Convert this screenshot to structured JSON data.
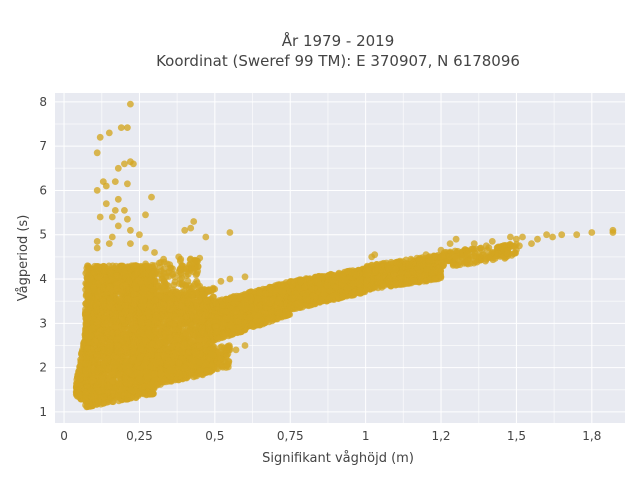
{
  "chart_data": {
    "type": "scatter",
    "title_line1": "År 1979 - 2019",
    "title_line2": "Koordinat (Sweref 99 TM): E 370907, N 6178096",
    "xlabel": "Signifikant våghöjd (m)",
    "ylabel": "Vågperiod (s)",
    "xlim": [
      -0.03,
      1.86
    ],
    "ylim": [
      0.75,
      8.2
    ],
    "x_ticks": [
      {
        "value": 0,
        "label": "0"
      },
      {
        "value": 0.25,
        "label": "0,25"
      },
      {
        "value": 0.5,
        "label": "0,5"
      },
      {
        "value": 0.75,
        "label": "0,75"
      },
      {
        "value": 1,
        "label": "1"
      },
      {
        "value": 1.25,
        "label": "1,2"
      },
      {
        "value": 1.5,
        "label": "1,5"
      },
      {
        "value": 1.75,
        "label": "1,8"
      }
    ],
    "y_ticks": [
      {
        "value": 1,
        "label": "1"
      },
      {
        "value": 2,
        "label": "2"
      },
      {
        "value": 3,
        "label": "3"
      },
      {
        "value": 4,
        "label": "4"
      },
      {
        "value": 5,
        "label": "5"
      },
      {
        "value": 6,
        "label": "6"
      },
      {
        "value": 7,
        "label": "7"
      },
      {
        "value": 8,
        "label": "8"
      }
    ],
    "marker_color": "#D4A520",
    "plot_background": "#E8EAF1",
    "grid": true,
    "points": [
      [
        0.22,
        7.95
      ],
      [
        0.19,
        7.42
      ],
      [
        0.21,
        7.42
      ],
      [
        0.15,
        7.3
      ],
      [
        0.12,
        7.2
      ],
      [
        0.11,
        6.85
      ],
      [
        0.22,
        6.65
      ],
      [
        0.2,
        6.6
      ],
      [
        0.23,
        6.6
      ],
      [
        0.18,
        6.5
      ],
      [
        0.17,
        6.2
      ],
      [
        0.13,
        6.2
      ],
      [
        0.21,
        6.15
      ],
      [
        0.14,
        6.1
      ],
      [
        0.11,
        6.0
      ],
      [
        0.29,
        5.85
      ],
      [
        0.18,
        5.8
      ],
      [
        0.14,
        5.7
      ],
      [
        0.17,
        5.55
      ],
      [
        0.2,
        5.55
      ],
      [
        0.27,
        5.45
      ],
      [
        0.16,
        5.4
      ],
      [
        0.12,
        5.4
      ],
      [
        0.21,
        5.35
      ],
      [
        0.18,
        5.2
      ],
      [
        0.22,
        5.1
      ],
      [
        0.25,
        5.0
      ],
      [
        0.16,
        4.95
      ],
      [
        0.15,
        4.8
      ],
      [
        0.11,
        4.85
      ],
      [
        0.22,
        4.8
      ],
      [
        0.11,
        4.7
      ],
      [
        0.27,
        4.7
      ],
      [
        0.3,
        4.6
      ],
      [
        0.43,
        5.3
      ],
      [
        0.42,
        5.15
      ],
      [
        0.4,
        5.1
      ],
      [
        0.55,
        5.05
      ],
      [
        0.47,
        4.95
      ],
      [
        0.38,
        4.5
      ],
      [
        0.33,
        4.45
      ],
      [
        0.43,
        4.4
      ],
      [
        1.82,
        5.1
      ],
      [
        1.82,
        5.05
      ],
      [
        1.75,
        5.05
      ],
      [
        1.7,
        5.0
      ],
      [
        1.65,
        5.0
      ],
      [
        1.6,
        5.0
      ],
      [
        1.57,
        4.9
      ],
      [
        1.52,
        4.95
      ],
      [
        1.5,
        4.9
      ],
      [
        1.48,
        4.95
      ],
      [
        1.42,
        4.85
      ],
      [
        1.36,
        4.8
      ],
      [
        1.62,
        4.95
      ],
      [
        1.55,
        4.8
      ],
      [
        1.51,
        4.75
      ],
      [
        1.46,
        4.7
      ],
      [
        1.4,
        4.75
      ],
      [
        1.3,
        4.9
      ],
      [
        1.28,
        4.8
      ],
      [
        1.25,
        4.65
      ],
      [
        1.2,
        4.55
      ],
      [
        1.15,
        4.45
      ],
      [
        1.03,
        4.55
      ],
      [
        1.02,
        4.5
      ],
      [
        0.6,
        2.5
      ],
      [
        0.57,
        2.4
      ],
      [
        0.52,
        2.2
      ],
      [
        0.47,
        2.1
      ],
      [
        0.43,
        2.15
      ],
      [
        0.38,
        2.1
      ],
      [
        0.35,
        1.95
      ],
      [
        0.3,
        1.85
      ],
      [
        0.25,
        1.75
      ],
      [
        0.55,
        4.0
      ],
      [
        0.6,
        4.05
      ],
      [
        0.52,
        3.95
      ]
    ],
    "bands": [
      {
        "x0": 0.04,
        "x1": 0.09,
        "ylo0": 1.35,
        "yhi0": 1.65,
        "ylo1": 1.15,
        "yhi1": 3.6,
        "n": 220
      },
      {
        "x0": 0.07,
        "x1": 0.3,
        "ylo0": 1.1,
        "yhi0": 4.3,
        "ylo1": 1.4,
        "yhi1": 4.3,
        "n": 2600
      },
      {
        "x0": 0.25,
        "x1": 0.5,
        "ylo0": 1.5,
        "yhi0": 3.6,
        "ylo1": 1.9,
        "yhi1": 3.8,
        "n": 1500
      },
      {
        "x0": 0.5,
        "x1": 0.75,
        "ylo0": 2.6,
        "yhi0": 3.5,
        "ylo1": 3.2,
        "yhi1": 3.95,
        "n": 1100
      },
      {
        "x0": 0.75,
        "x1": 1.0,
        "ylo0": 3.3,
        "yhi0": 3.95,
        "ylo1": 3.7,
        "yhi1": 4.25,
        "n": 900
      },
      {
        "x0": 1.0,
        "x1": 1.25,
        "ylo0": 3.75,
        "yhi0": 4.3,
        "ylo1": 4.0,
        "yhi1": 4.55,
        "n": 600
      },
      {
        "x0": 1.25,
        "x1": 1.5,
        "ylo0": 4.25,
        "yhi0": 4.6,
        "ylo1": 4.5,
        "yhi1": 4.8,
        "n": 180
      },
      {
        "x0": 0.2,
        "x1": 0.55,
        "ylo0": 1.6,
        "yhi0": 2.2,
        "ylo1": 2.0,
        "yhi1": 2.5,
        "n": 500
      },
      {
        "x0": 0.2,
        "x1": 0.45,
        "ylo0": 3.5,
        "yhi0": 4.3,
        "ylo1": 3.5,
        "yhi1": 4.5,
        "n": 220
      }
    ]
  }
}
